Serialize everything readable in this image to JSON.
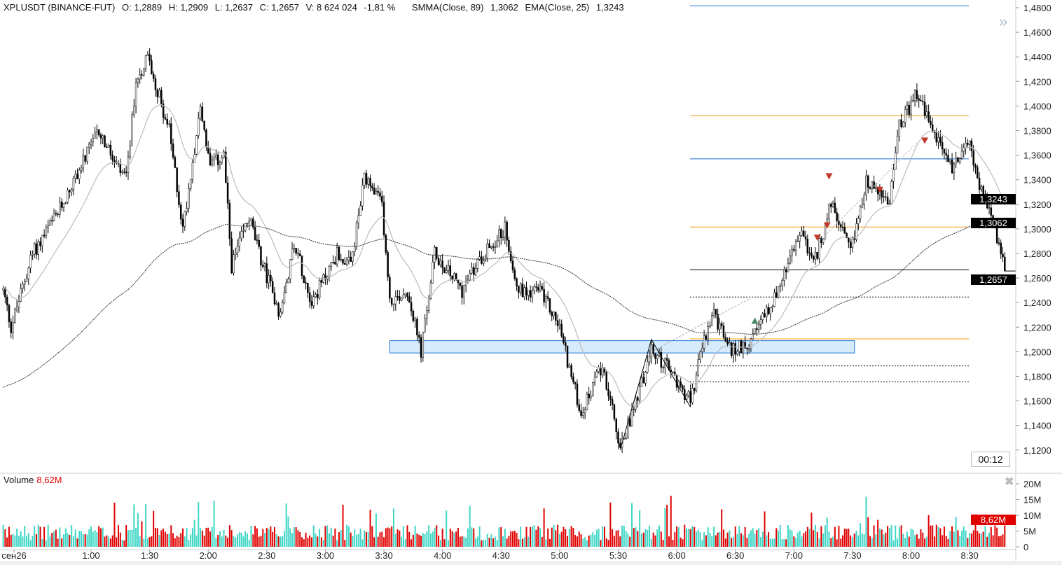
{
  "header": {
    "symbol": "XPLUSDT (BINANCE-FUT)",
    "open": "O: 1,2889",
    "high": "H: 1,2909",
    "low": "L: 1,2637",
    "close": "C: 1,2657",
    "volume": "V: 8 624 024",
    "change": "-1,81 %",
    "smma_label": "SMMA(Close, 89)",
    "smma_value": "1,3062",
    "ema_label": "EMA(Close, 25)",
    "ema_value": "1,3243"
  },
  "volume_pane": {
    "title": "Volume",
    "value": "8,62M"
  },
  "timer": "00:12",
  "price_labels": {
    "ema": "1,3243",
    "smma": "1,3062",
    "last": "1,2657"
  },
  "colors": {
    "up": "#ffffff",
    "down": "#000000",
    "vol_up": "#3fd6c6",
    "vol_down": "#e00000",
    "blue_line": "#1e73d8",
    "orange_line": "#f39c12",
    "zone_fill": "#d6ebfb",
    "marker": "#c0392b"
  },
  "chart_data": {
    "type": "candlestick",
    "title": "XPLUSDT (BINANCE-FUT)",
    "ylim": [
      1.11,
      1.485
    ],
    "y_ticks": [
      "1,4800",
      "1,4600",
      "1,4400",
      "1,4200",
      "1,4000",
      "1,3800",
      "1,3600",
      "1,3400",
      "1,3200",
      "1,3000",
      "1,2800",
      "1,2600",
      "1,2400",
      "1,2200",
      "1,2000",
      "1,1800",
      "1,1600",
      "1,1400",
      "1,1200"
    ],
    "y_tick_values": [
      1.48,
      1.46,
      1.44,
      1.42,
      1.4,
      1.38,
      1.36,
      1.34,
      1.32,
      1.3,
      1.28,
      1.26,
      1.24,
      1.22,
      1.2,
      1.18,
      1.16,
      1.14,
      1.12
    ],
    "x_ticks": [
      {
        "label": "сен26",
        "min": 0
      },
      {
        "label": "1:00",
        "min": 60
      },
      {
        "label": "1:30",
        "min": 90
      },
      {
        "label": "2:00",
        "min": 120
      },
      {
        "label": "2:30",
        "min": 150
      },
      {
        "label": "3:00",
        "min": 180
      },
      {
        "label": "3:30",
        "min": 210
      },
      {
        "label": "4:00",
        "min": 240
      },
      {
        "label": "4:30",
        "min": 270
      },
      {
        "label": "5:00",
        "min": 300
      },
      {
        "label": "5:30",
        "min": 330
      },
      {
        "label": "6:00",
        "min": 360
      },
      {
        "label": "6:30",
        "min": 390
      },
      {
        "label": "7:00",
        "min": 420
      },
      {
        "label": "7:30",
        "min": 450
      },
      {
        "label": "8:00",
        "min": 480
      },
      {
        "label": "8:30",
        "min": 510
      }
    ],
    "path_minutes": [
      15,
      19,
      30,
      42,
      64,
      73,
      78,
      83,
      89,
      100,
      107,
      116,
      121,
      128,
      132,
      141,
      146,
      157,
      164,
      173,
      186,
      193,
      200,
      209,
      213,
      222,
      229,
      236,
      250,
      261,
      272,
      279,
      290,
      300,
      306,
      311,
      322,
      331,
      347,
      354,
      367,
      374,
      379,
      388,
      399,
      405,
      412,
      424,
      430,
      439,
      449,
      457,
      469,
      473,
      483,
      491,
      501,
      510,
      516,
      523,
      528
    ],
    "path_prices": [
      1.25,
      1.22,
      1.28,
      1.31,
      1.38,
      1.35,
      1.34,
      1.42,
      1.44,
      1.38,
      1.3,
      1.4,
      1.35,
      1.36,
      1.27,
      1.31,
      1.28,
      1.23,
      1.29,
      1.24,
      1.28,
      1.27,
      1.34,
      1.32,
      1.24,
      1.25,
      1.2,
      1.28,
      1.25,
      1.28,
      1.3,
      1.25,
      1.25,
      1.22,
      1.18,
      1.15,
      1.19,
      1.12,
      1.2,
      1.19,
      1.16,
      1.21,
      1.23,
      1.2,
      1.21,
      1.23,
      1.25,
      1.3,
      1.27,
      1.32,
      1.28,
      1.34,
      1.32,
      1.38,
      1.41,
      1.38,
      1.35,
      1.37,
      1.33,
      1.3,
      1.2657
    ],
    "indicators": [
      {
        "name": "SMMA(Close, 89)",
        "last": 1.3062
      },
      {
        "name": "EMA(Close, 25)",
        "last": 1.3243
      }
    ],
    "levels": [
      {
        "price": 1.4815,
        "color": "blue",
        "style": "solid"
      },
      {
        "price": 1.392,
        "color": "orange",
        "style": "solid"
      },
      {
        "price": 1.357,
        "color": "blue",
        "style": "solid"
      },
      {
        "price": 1.3015,
        "color": "orange",
        "style": "solid"
      },
      {
        "price": 1.2667,
        "color": "black",
        "style": "solid"
      },
      {
        "price": 1.2445,
        "color": "black",
        "style": "dotted"
      },
      {
        "price": 1.2105,
        "color": "orange",
        "style": "solid"
      },
      {
        "price": 1.1885,
        "color": "black",
        "style": "dotted"
      },
      {
        "price": 1.1755,
        "color": "black",
        "style": "dotted"
      }
    ],
    "zone": {
      "from_min": 213,
      "to_min": 451,
      "low": 1.199,
      "high": 1.209
    },
    "volume_ticks": [
      "20M",
      "15M",
      "10M",
      "5M",
      "0"
    ],
    "volume_tick_values": [
      20,
      15,
      10,
      5,
      0
    ],
    "last_volume_m": 8.62
  }
}
